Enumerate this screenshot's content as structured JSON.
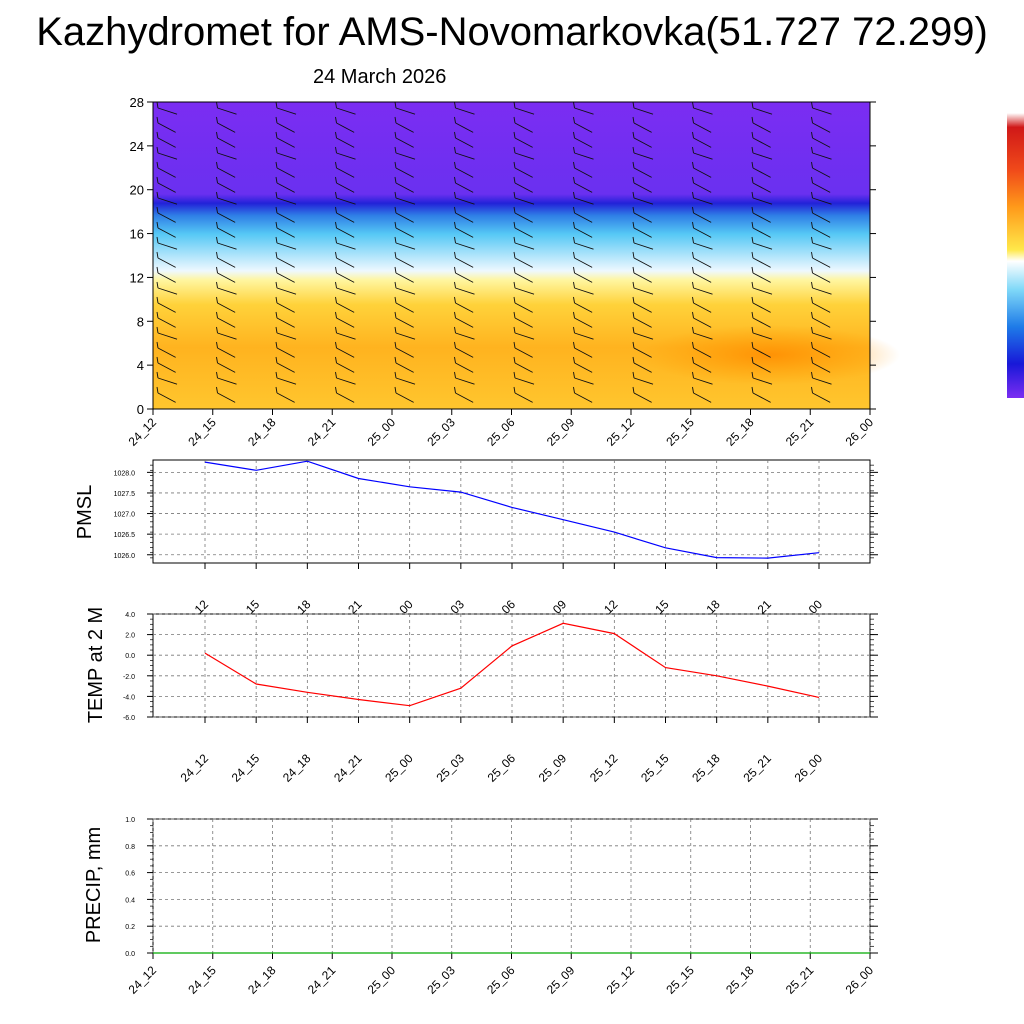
{
  "title": "Kazhydromet for AMS-Novomarkovka(51.727 72.299)",
  "subtitle": "24 March 2026",
  "time_labels": [
    "24_12",
    "24_15",
    "24_18",
    "24_21",
    "25_00",
    "25_03",
    "25_06",
    "25_09",
    "25_12",
    "25_15",
    "25_18",
    "25_21",
    "26_00"
  ],
  "colors": {
    "pmsl_line": "#0000ff",
    "temp_line": "#ff0000",
    "precip_line": "#00aa00",
    "upper_purple": "#7a2cf0",
    "lower_orange": "#ffae19"
  },
  "chart_data": [
    {
      "type": "heatmap",
      "name": "vertical cross-section (temperature shading with wind barbs)",
      "ylim": [
        0,
        28
      ],
      "yticks": [
        "0",
        "4",
        "8",
        "12",
        "16",
        "20",
        "24",
        "28"
      ],
      "x": [
        "24_12",
        "24_15",
        "24_18",
        "24_21",
        "25_00",
        "25_03",
        "25_06",
        "25_09",
        "25_12",
        "25_15",
        "25_18",
        "25_21",
        "26_00"
      ],
      "wind_barbs": "shown at each time step and level"
    },
    {
      "type": "line",
      "ylabel": "PMSL",
      "ylim": [
        1025.8,
        1028.3
      ],
      "yticks": [
        "1026.0",
        "1026.5",
        "1027.0",
        "1027.5",
        "1028.0"
      ],
      "x": [
        "24_12",
        "24_15",
        "24_18",
        "24_21",
        "25_00",
        "25_03",
        "25_06",
        "25_09",
        "25_12",
        "25_15",
        "25_18",
        "25_21",
        "26_00"
      ],
      "values": [
        1028.25,
        1028.05,
        1028.27,
        1027.85,
        1027.65,
        1027.52,
        1027.15,
        1026.85,
        1026.55,
        1026.17,
        1025.93,
        1025.92,
        1026.05
      ]
    },
    {
      "type": "line",
      "ylabel": "TEMP at 2 M",
      "ylim": [
        -6.0,
        4.0
      ],
      "yticks": [
        "-6.0",
        "-4.0",
        "-2.0",
        "0.0",
        "2.0",
        "4.0"
      ],
      "x": [
        "24_12",
        "24_15",
        "24_18",
        "24_21",
        "25_00",
        "25_03",
        "25_06",
        "25_09",
        "25_12",
        "25_15",
        "25_18",
        "25_21",
        "26_00"
      ],
      "values": [
        0.2,
        -2.8,
        -3.6,
        -4.3,
        -4.9,
        -3.2,
        0.9,
        3.1,
        2.1,
        -1.2,
        -2.0,
        -3.0,
        -4.1
      ]
    },
    {
      "type": "line",
      "ylabel": "PRECIP, mm",
      "ylim": [
        0.0,
        1.0
      ],
      "yticks": [
        "0.0",
        "0.2",
        "0.4",
        "0.6",
        "0.8",
        "1.0"
      ],
      "x": [
        "24_12",
        "24_15",
        "24_18",
        "24_21",
        "25_00",
        "25_03",
        "25_06",
        "25_09",
        "25_12",
        "25_15",
        "25_18",
        "25_21",
        "26_00"
      ],
      "values": [
        0,
        0,
        0,
        0,
        0,
        0,
        0,
        0,
        0,
        0,
        0,
        0,
        0
      ]
    }
  ]
}
